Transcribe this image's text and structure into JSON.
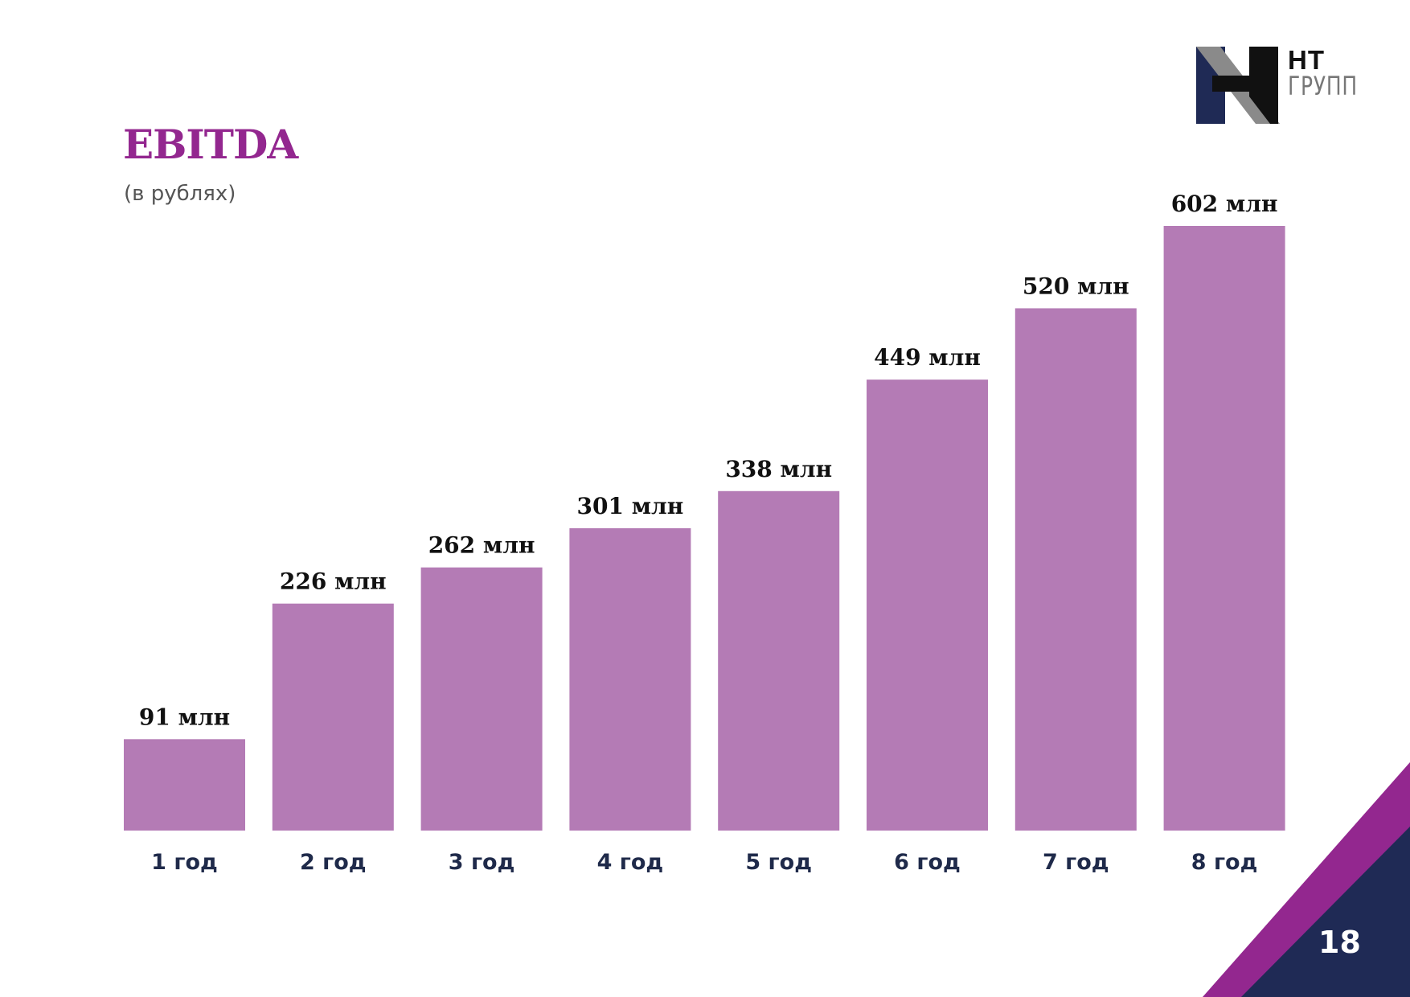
{
  "title": "EBITDA",
  "subtitle": "(в рублях)",
  "logo": {
    "line1": "НТ",
    "line2": "ГРУПП"
  },
  "page_number": "18",
  "colors": {
    "bar": "#b47bb5",
    "title": "#93278f",
    "axis_label": "#1f2a4a",
    "value_label": "#111111",
    "corner_purple": "#93278f",
    "corner_navy": "#1f2a55"
  },
  "chart_data": {
    "type": "bar",
    "title": "EBITDA",
    "subtitle": "(в рублях)",
    "categories": [
      "1 год",
      "2 год",
      "3 год",
      "4 год",
      "5 год",
      "6 год",
      "7 год",
      "8 год"
    ],
    "values": [
      91,
      226,
      262,
      301,
      338,
      449,
      520,
      602
    ],
    "value_labels": [
      "91 млн",
      "226 млн",
      "262 млн",
      "301 млн",
      "338 млн",
      "449 млн",
      "520 млн",
      "602 млн"
    ],
    "unit": "млн",
    "xlabel": "",
    "ylabel": "",
    "ylim": [
      0,
      602
    ],
    "grid": false,
    "legend": "none"
  }
}
